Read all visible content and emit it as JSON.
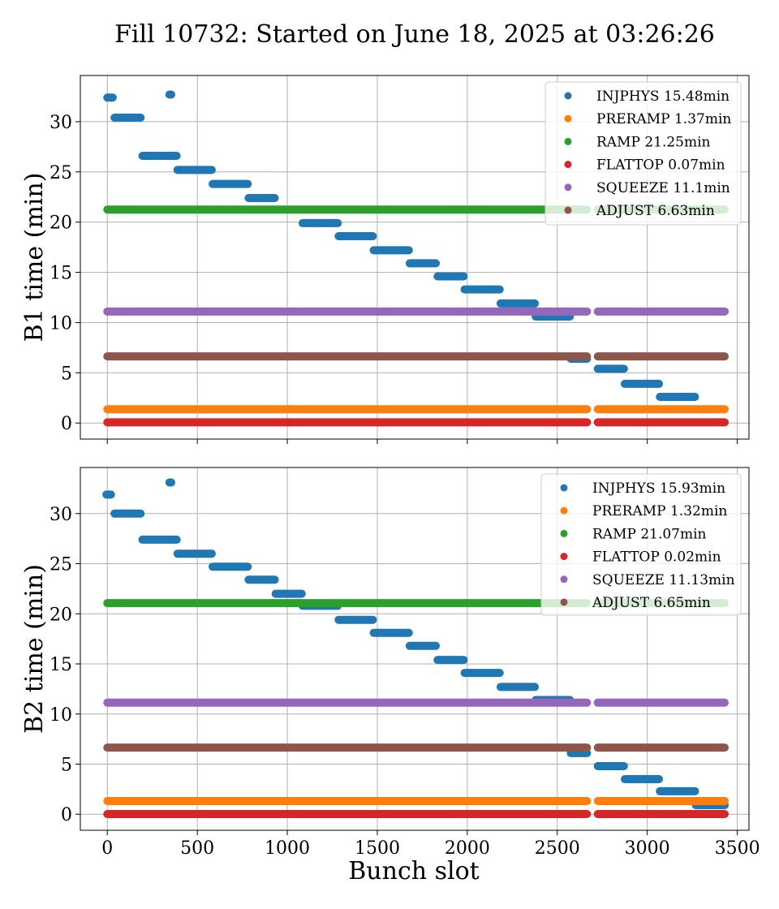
{
  "title": "Fill 10732: Started on June 18, 2025 at 03:26:26",
  "xlabel": "Bunch slot",
  "colors": {
    "INJPHYS": "#1f77b4",
    "PRERAMP": "#ff7f0e",
    "RAMP": "#2ca02c",
    "FLATTOP": "#d62728",
    "SQUEEZE": "#9467bd",
    "ADJUST": "#8c564b"
  },
  "chart_data": [
    {
      "type": "scatter",
      "ylabel": "B1 time (min)",
      "xlim": [
        -150,
        3565
      ],
      "ylim": [
        -1.6,
        34.6
      ],
      "xticks": [
        0,
        500,
        1000,
        1500,
        2000,
        2500,
        3000,
        3500
      ],
      "xtick_labels": [
        "",
        "",
        "",
        "",
        "",
        "",
        "",
        ""
      ],
      "yticks": [
        0,
        5,
        10,
        15,
        20,
        25,
        30
      ],
      "ytick_labels": [
        "0",
        "5",
        "10",
        "15",
        "20",
        "25",
        "30"
      ],
      "grid": true,
      "legend_position": "top-right",
      "legend": [
        "INJPHYS 15.48min",
        "PRERAMP 1.37min",
        "RAMP 21.25min",
        "FLATTOP 0.07min",
        "SQUEEZE 11.1min",
        "ADJUST 6.63min"
      ],
      "flat_bands": [
        [
          0,
          2665
        ],
        [
          2725,
          3430
        ]
      ],
      "series": [
        {
          "name": "INJPHYS 15.48min",
          "segments": [
            {
              "x0": 0,
              "x1": 30,
              "y": 32.4
            },
            {
              "x0": 345,
              "x1": 355,
              "y": 32.7
            },
            {
              "x0": 40,
              "x1": 185,
              "y": 30.4
            },
            {
              "x0": 195,
              "x1": 385,
              "y": 26.6
            },
            {
              "x0": 390,
              "x1": 580,
              "y": 25.2
            },
            {
              "x0": 585,
              "x1": 780,
              "y": 23.8
            },
            {
              "x0": 785,
              "x1": 930,
              "y": 22.4
            },
            {
              "x0": 1085,
              "x1": 1280,
              "y": 19.9
            },
            {
              "x0": 1285,
              "x1": 1475,
              "y": 18.6
            },
            {
              "x0": 1480,
              "x1": 1675,
              "y": 17.2
            },
            {
              "x0": 1680,
              "x1": 1825,
              "y": 15.9
            },
            {
              "x0": 1835,
              "x1": 1980,
              "y": 14.6
            },
            {
              "x0": 1985,
              "x1": 2180,
              "y": 13.3
            },
            {
              "x0": 2185,
              "x1": 2375,
              "y": 11.9
            },
            {
              "x0": 2380,
              "x1": 2570,
              "y": 10.6
            },
            {
              "x0": 2575,
              "x1": 2665,
              "y": 6.4
            },
            {
              "x0": 2725,
              "x1": 2870,
              "y": 5.4
            },
            {
              "x0": 2875,
              "x1": 3065,
              "y": 3.9
            },
            {
              "x0": 3070,
              "x1": 3265,
              "y": 2.6
            }
          ]
        },
        {
          "name": "PRERAMP 1.37min",
          "value": 1.37
        },
        {
          "name": "RAMP 21.25min",
          "value": 21.25
        },
        {
          "name": "FLATTOP 0.07min",
          "value": 0.07
        },
        {
          "name": "SQUEEZE 11.1min",
          "value": 11.1
        },
        {
          "name": "ADJUST 6.63min",
          "value": 6.63
        }
      ]
    },
    {
      "type": "scatter",
      "ylabel": "B2 time (min)",
      "xlabel": "Bunch slot",
      "xlim": [
        -150,
        3565
      ],
      "ylim": [
        -1.6,
        34.6
      ],
      "xticks": [
        0,
        500,
        1000,
        1500,
        2000,
        2500,
        3000,
        3500
      ],
      "xtick_labels": [
        "0",
        "500",
        "1000",
        "1500",
        "2000",
        "2500",
        "3000",
        "3500"
      ],
      "yticks": [
        0,
        5,
        10,
        15,
        20,
        25,
        30
      ],
      "ytick_labels": [
        "0",
        "5",
        "10",
        "15",
        "20",
        "25",
        "30"
      ],
      "grid": true,
      "legend_position": "top-right",
      "legend": [
        "INJPHYS 15.93min",
        "PRERAMP 1.32min",
        "RAMP 21.07min",
        "FLATTOP 0.02min",
        "SQUEEZE 11.13min",
        "ADJUST 6.65min"
      ],
      "flat_bands": [
        [
          0,
          2665
        ],
        [
          2725,
          3430
        ]
      ],
      "series": [
        {
          "name": "INJPHYS 15.93min",
          "segments": [
            {
              "x0": -5,
              "x1": 20,
              "y": 31.9
            },
            {
              "x0": 345,
              "x1": 355,
              "y": 33.1
            },
            {
              "x0": 40,
              "x1": 185,
              "y": 30.0
            },
            {
              "x0": 195,
              "x1": 385,
              "y": 27.4
            },
            {
              "x0": 390,
              "x1": 580,
              "y": 26.0
            },
            {
              "x0": 585,
              "x1": 780,
              "y": 24.7
            },
            {
              "x0": 785,
              "x1": 930,
              "y": 23.4
            },
            {
              "x0": 935,
              "x1": 1080,
              "y": 22.0
            },
            {
              "x0": 1085,
              "x1": 1280,
              "y": 20.8
            },
            {
              "x0": 1285,
              "x1": 1475,
              "y": 19.4
            },
            {
              "x0": 1480,
              "x1": 1675,
              "y": 18.1
            },
            {
              "x0": 1680,
              "x1": 1825,
              "y": 16.8
            },
            {
              "x0": 1835,
              "x1": 1980,
              "y": 15.4
            },
            {
              "x0": 1985,
              "x1": 2180,
              "y": 14.1
            },
            {
              "x0": 2185,
              "x1": 2375,
              "y": 12.7
            },
            {
              "x0": 2380,
              "x1": 2570,
              "y": 11.4
            },
            {
              "x0": 2575,
              "x1": 2665,
              "y": 6.1
            },
            {
              "x0": 2725,
              "x1": 2870,
              "y": 4.8
            },
            {
              "x0": 2875,
              "x1": 3065,
              "y": 3.5
            },
            {
              "x0": 3070,
              "x1": 3265,
              "y": 2.3
            },
            {
              "x0": 3270,
              "x1": 3430,
              "y": 0.9
            }
          ]
        },
        {
          "name": "PRERAMP 1.32min",
          "value": 1.32
        },
        {
          "name": "RAMP 21.07min",
          "value": 21.07
        },
        {
          "name": "FLATTOP 0.02min",
          "value": 0.02
        },
        {
          "name": "SQUEEZE 11.13min",
          "value": 11.13
        },
        {
          "name": "ADJUST 6.65min",
          "value": 6.65
        }
      ]
    }
  ]
}
